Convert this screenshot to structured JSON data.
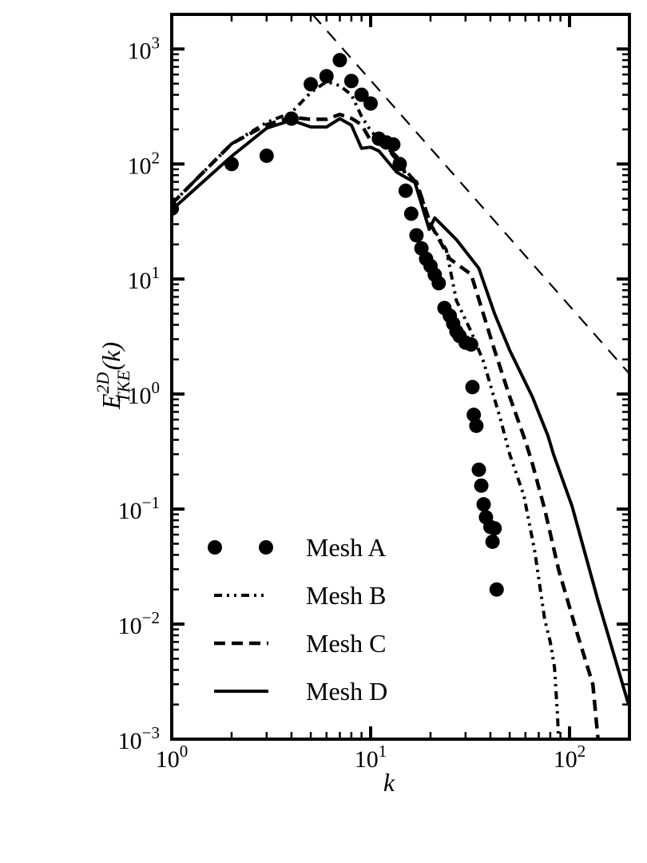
{
  "chart_data": {
    "type": "line",
    "title": "",
    "xlabel": "k",
    "ylabel": {
      "base": "E",
      "sup": "2D",
      "sub": "TKE",
      "suffix": "(k)"
    },
    "xscale": "log",
    "yscale": "log",
    "xlim": [
      1,
      200
    ],
    "ylim": [
      0.001,
      2000
    ],
    "grid": false,
    "legend_position": "bottom-left",
    "x_ticks": [
      {
        "base": "10",
        "exp": "0",
        "value": 1
      },
      {
        "base": "10",
        "exp": "1",
        "value": 10
      },
      {
        "base": "10",
        "exp": "2",
        "value": 100
      }
    ],
    "y_ticks": [
      {
        "base": "10",
        "exp": "3",
        "value": 1000
      },
      {
        "base": "10",
        "exp": "2",
        "value": 100
      },
      {
        "base": "10",
        "exp": "1",
        "value": 10
      },
      {
        "base": "10",
        "exp": "0",
        "value": 1
      },
      {
        "base": "10",
        "exp": "−1",
        "value": 0.1
      },
      {
        "base": "10",
        "exp": "−2",
        "value": 0.01
      },
      {
        "base": "10",
        "exp": "−3",
        "value": 0.001
      }
    ],
    "series": [
      {
        "name": "Mesh A",
        "style": "markers",
        "x": [
          1,
          2,
          3,
          4,
          5,
          6,
          7,
          8,
          9,
          10,
          11,
          12,
          13,
          14,
          15,
          16,
          17,
          18,
          19,
          20,
          21,
          22,
          23.5,
          25,
          26,
          27,
          28,
          30,
          32,
          32.5,
          33,
          34,
          35,
          36,
          37,
          38,
          40,
          41,
          42,
          43
        ],
        "y": [
          41,
          100,
          118,
          248,
          494,
          580,
          800,
          527,
          400,
          336,
          166,
          154,
          148,
          100,
          58.6,
          37,
          24,
          18.5,
          15,
          13,
          10.9,
          9.2,
          5.6,
          4.8,
          4.1,
          3.5,
          3.2,
          2.8,
          2.7,
          1.15,
          0.66,
          0.53,
          0.22,
          0.16,
          0.11,
          0.085,
          0.07,
          0.052,
          0.068,
          0.02
        ]
      },
      {
        "name": "Mesh B",
        "style": "dash-dot-dot",
        "x": [
          1,
          2,
          3,
          4,
          5,
          6,
          7,
          8,
          9,
          10,
          12,
          14,
          17,
          20,
          24,
          27,
          32,
          37,
          45,
          50,
          59,
          67,
          75,
          80,
          84,
          87,
          88
        ],
        "y": [
          45,
          150,
          230,
          280,
          420,
          520,
          480,
          400,
          260,
          195,
          140,
          100,
          69,
          30,
          18,
          6.5,
          3.5,
          1.9,
          0.6,
          0.3,
          0.13,
          0.042,
          0.011,
          0.007,
          0.0042,
          0.0016,
          0.001
        ]
      },
      {
        "name": "Mesh C",
        "style": "dashed",
        "x": [
          1,
          2,
          3,
          4,
          5,
          6,
          7,
          8,
          9,
          10,
          11,
          12,
          14,
          15,
          17,
          20,
          25,
          32,
          42,
          50,
          60,
          65,
          75,
          88,
          110,
          131,
          139
        ],
        "y": [
          45,
          150,
          220,
          255,
          245,
          245,
          270,
          250,
          220,
          160,
          150,
          140,
          110,
          80,
          70,
          30,
          15,
          11,
          2.4,
          0.95,
          0.39,
          0.25,
          0.1,
          0.03,
          0.008,
          0.003,
          0.001
        ]
      },
      {
        "name": "Mesh D",
        "style": "solid",
        "x": [
          1,
          2,
          3,
          4,
          5,
          6,
          7,
          8,
          9,
          10,
          11,
          13.5,
          16.7,
          19.7,
          21,
          27,
          35,
          42,
          50,
          65,
          78,
          83,
          103,
          139,
          198
        ],
        "y": [
          40,
          117,
          205,
          240,
          210,
          210,
          248,
          218,
          137,
          140,
          130,
          85,
          69,
          27,
          34,
          22,
          12.4,
          5,
          2.4,
          0.95,
          0.43,
          0.3,
          0.106,
          0.016,
          0.002
        ]
      },
      {
        "name": "reference slope",
        "style": "thin-dashed",
        "legend": false,
        "x": [
          5.1,
          200
        ],
        "y": [
          2000,
          1.5
        ]
      }
    ]
  }
}
